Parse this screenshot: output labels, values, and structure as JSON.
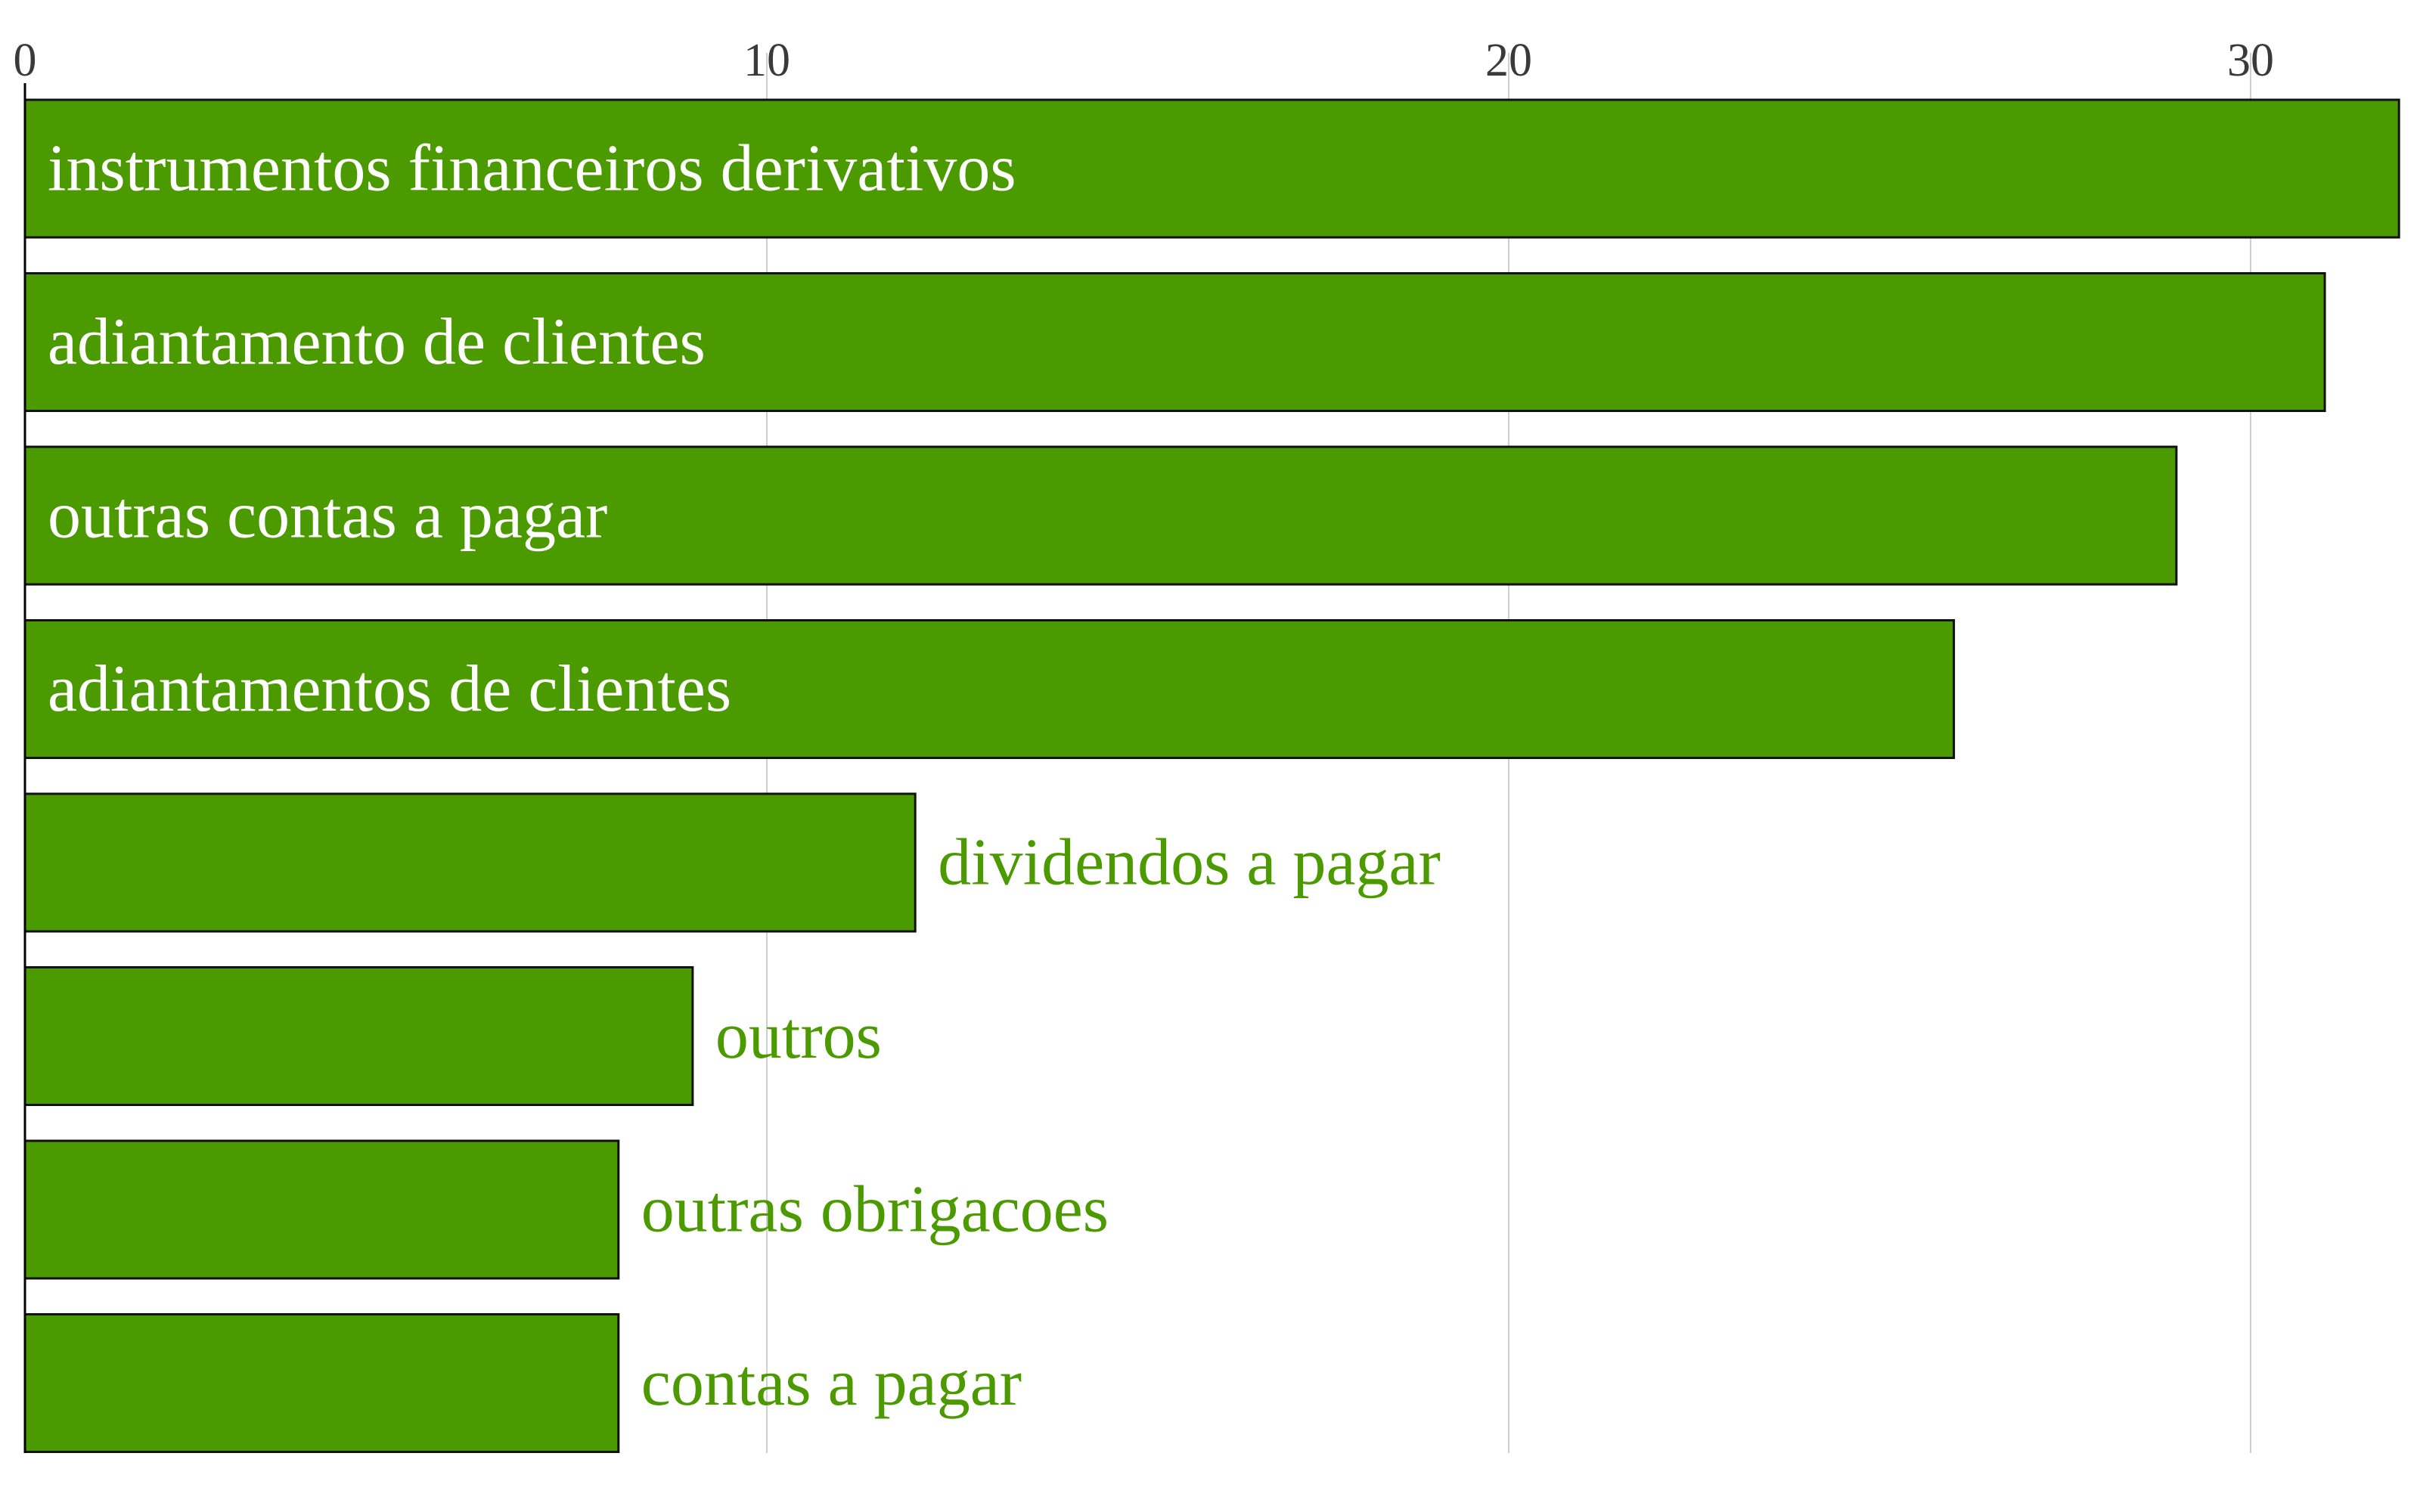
{
  "colors": {
    "bar_fill": "#4b9a00",
    "label_inside": "#ffffff",
    "label_outside": "#4b9a00",
    "grid": "#cfcfcf",
    "axis": "#000000"
  },
  "chart_data": {
    "type": "bar",
    "orientation": "horizontal",
    "title": "",
    "xlabel": "",
    "ylabel": "",
    "xlim": [
      0,
      32
    ],
    "x_axis_position": "top",
    "xticks": [
      0,
      10,
      20,
      30
    ],
    "xtick_labels": [
      "0",
      "10",
      "20",
      "30"
    ],
    "grid": "vertical",
    "categories": [
      "instrumentos financeiros derivativos",
      "adiantamento de clientes",
      "outras contas a pagar",
      "adiantamentos de clientes",
      "dividendos a pagar",
      "outros",
      "outras obrigacoes",
      "contas a pagar"
    ],
    "values": [
      32,
      31,
      29,
      26,
      12,
      9,
      8,
      8
    ]
  }
}
